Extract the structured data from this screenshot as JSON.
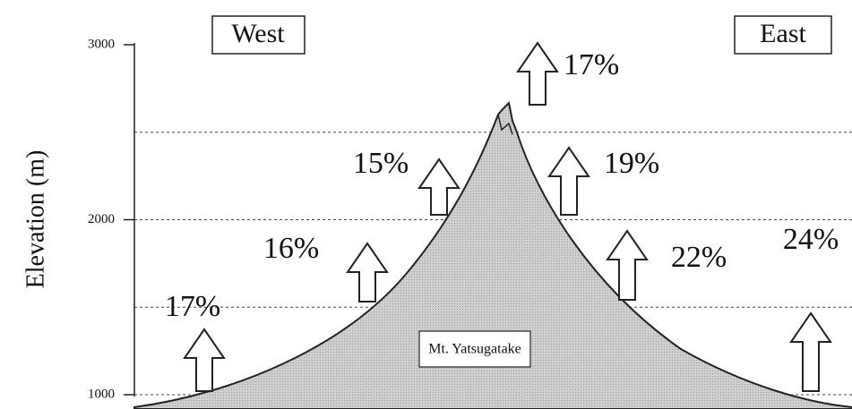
{
  "y_axis": {
    "label": "Elevation (m)",
    "ticks": [
      1000,
      2000,
      3000
    ],
    "range": [
      1000,
      3000
    ],
    "grid_levels": [
      1000,
      1500,
      2000,
      2500
    ]
  },
  "sides": {
    "west": "West",
    "east": "East"
  },
  "mountain": {
    "label": "Mt. Yatsugatake"
  },
  "arrows": [
    {
      "label": "17%"
    },
    {
      "label": "16%"
    },
    {
      "label": "15%"
    },
    {
      "label": "17%"
    },
    {
      "label": "19%"
    },
    {
      "label": "22%"
    },
    {
      "label": "24%"
    }
  ]
}
